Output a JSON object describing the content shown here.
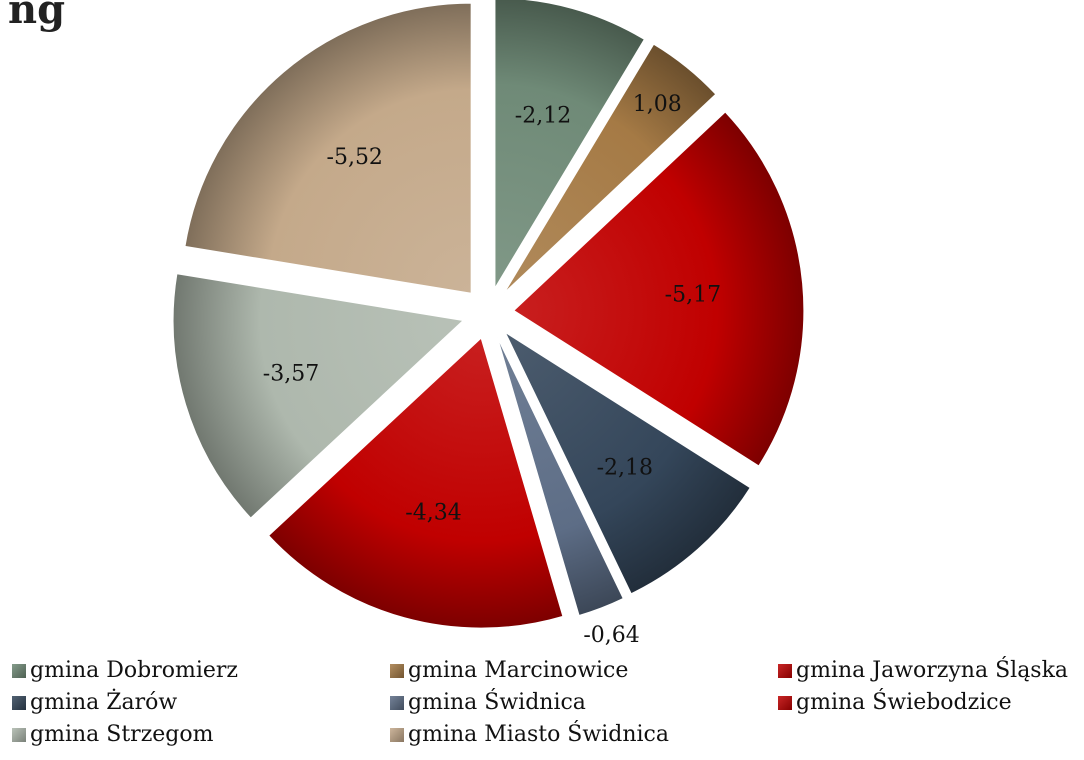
{
  "chart_data": {
    "type": "pie",
    "title_fragment": "ng",
    "slices": [
      {
        "label": "gmina Dobromierz",
        "value": -2.12,
        "display": "-2,12",
        "color": "#6f8a77"
      },
      {
        "label": "gmina Marcinowice",
        "value": 1.08,
        "display": "1,08",
        "color": "#a57a45"
      },
      {
        "label": "gmina Jaworzyna Śląska",
        "value": -5.17,
        "display": "-5,17",
        "color": "#c00000"
      },
      {
        "label": "gmina Żarów",
        "value": -2.18,
        "display": "-2,18",
        "color": "#34465a"
      },
      {
        "label": "gmina Świdnica",
        "value": -0.64,
        "display": "-0,64",
        "color": "#5d6d86"
      },
      {
        "label": "gmina Świebodzice",
        "value": -4.34,
        "display": "-4,34",
        "color": "#c00000"
      },
      {
        "label": "gmina Strzegom",
        "value": -3.57,
        "display": "-3,57",
        "color": "#aeb8ad"
      },
      {
        "label": "gmina Miasto Świdnica",
        "value": -5.52,
        "display": "-5,52",
        "color": "#c4a98a"
      }
    ],
    "legend_placement": "bottom"
  }
}
